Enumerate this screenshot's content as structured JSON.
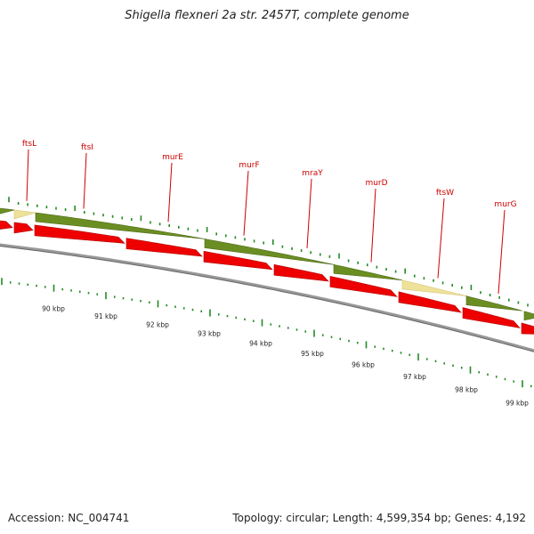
{
  "title": "Shigella flexneri 2a str. 2457T, complete genome",
  "footer": {
    "accession": "Accession: NC_004741",
    "summary": "Topology: circular; Length: 4,599,354 bp; Genes: 4,192"
  },
  "colors": {
    "gene_band": "#6b8e23",
    "gene_band_highlight": "#eee199",
    "cds_arrow": "#ee0000",
    "backbone": "#888888",
    "tick": "#228b22",
    "label": "#cc0000"
  },
  "genes": [
    {
      "name": "ftsL"
    },
    {
      "name": "ftsI"
    },
    {
      "name": "murE"
    },
    {
      "name": "murF"
    },
    {
      "name": "mraY"
    },
    {
      "name": "murD"
    },
    {
      "name": "ftsW"
    },
    {
      "name": "murG"
    }
  ],
  "kbp_ticks": [
    "90 kbp",
    "91 kbp",
    "92 kbp",
    "93 kbp",
    "94 kbp",
    "95 kbp",
    "96 kbp",
    "97 kbp",
    "98 kbp",
    "99 kbp"
  ]
}
